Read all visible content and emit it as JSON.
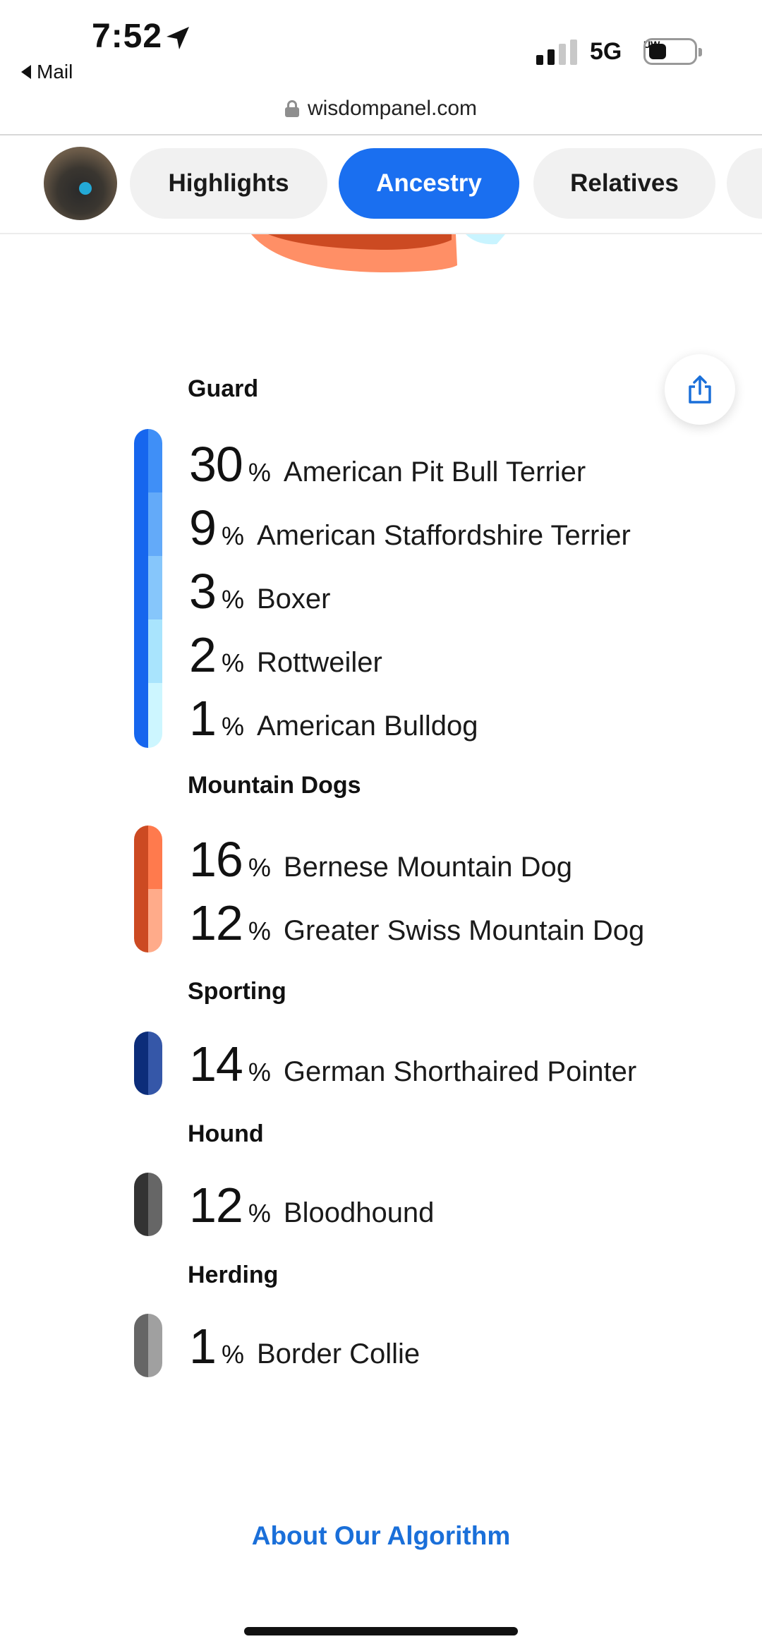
{
  "status_bar": {
    "time": "7:52",
    "back_label": "Mail",
    "network": "5G",
    "network_sub": "UW"
  },
  "browser": {
    "url": "wisdompanel.com"
  },
  "tabs": [
    {
      "label": "Highlights",
      "active": false
    },
    {
      "label": "Ancestry",
      "active": true
    },
    {
      "label": "Relatives",
      "active": false
    }
  ],
  "groups": [
    {
      "title": "Guard",
      "breeds": [
        {
          "pct": "30",
          "name": "American Pit Bull Terrier",
          "value": 30
        },
        {
          "pct": "9",
          "name": "American Staffordshire Terrier",
          "value": 9
        },
        {
          "pct": "3",
          "name": "Boxer",
          "value": 3
        },
        {
          "pct": "2",
          "name": "Rottweiler",
          "value": 2
        },
        {
          "pct": "1",
          "name": "American Bulldog",
          "value": 1
        }
      ]
    },
    {
      "title": "Mountain Dogs",
      "breeds": [
        {
          "pct": "16",
          "name": "Bernese Mountain Dog",
          "value": 16
        },
        {
          "pct": "12",
          "name": "Greater Swiss Mountain Dog",
          "value": 12
        }
      ]
    },
    {
      "title": "Sporting",
      "breeds": [
        {
          "pct": "14",
          "name": "German Shorthaired Pointer",
          "value": 14
        }
      ]
    },
    {
      "title": "Hound",
      "breeds": [
        {
          "pct": "12",
          "name": "Bloodhound",
          "value": 12
        }
      ]
    },
    {
      "title": "Herding",
      "breeds": [
        {
          "pct": "1",
          "name": "Border Collie",
          "value": 1
        }
      ]
    }
  ],
  "percent_sign": "%",
  "about_link": "About Our Algorithm",
  "colors": {
    "accent": "#1a6ff0",
    "link": "#1a6fd9",
    "guard": [
      "#3f8ff7",
      "#63aaf9",
      "#86c6fb",
      "#a9e4fd",
      "#cdf6ff"
    ],
    "guard_dark": "#1666ee",
    "mountain": [
      "#ff7a4d",
      "#ffab8a"
    ],
    "mountain_dark": "#cc4a22",
    "sporting": "#3557a8",
    "sporting_dark": "#0c2d7a",
    "hound": "#666666",
    "hound_dark": "#333333",
    "herding": "#a0a0a0",
    "herding_dark": "#666666"
  }
}
